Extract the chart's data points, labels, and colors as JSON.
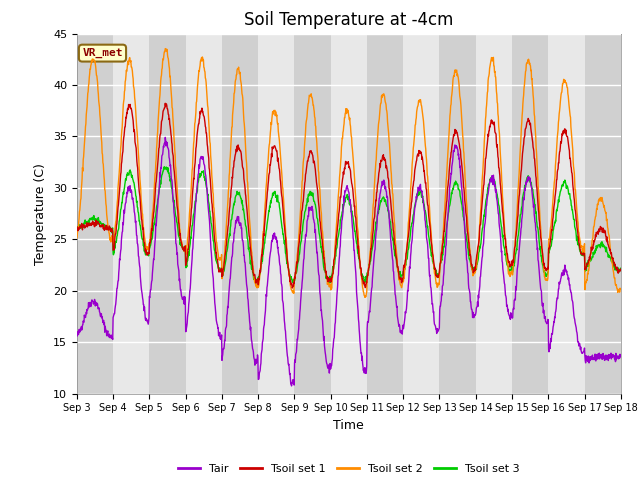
{
  "title": "Soil Temperature at -4cm",
  "xlabel": "Time",
  "ylabel": "Temperature (C)",
  "ylim": [
    10,
    45
  ],
  "yticks": [
    10,
    15,
    20,
    25,
    30,
    35,
    40,
    45
  ],
  "annotation": "VR_met",
  "legend_labels": [
    "Tair",
    "Tsoil set 1",
    "Tsoil set 2",
    "Tsoil set 3"
  ],
  "line_colors": [
    "#9900CC",
    "#CC0000",
    "#FF8C00",
    "#00CC00"
  ],
  "background_color": "#FFFFFF",
  "plot_bg_color": "#E8E8E8",
  "band_color_dark": "#D0D0D0",
  "band_color_light": "#E8E8E8",
  "n_days": 15,
  "start_day": 3,
  "points_per_day": 96,
  "title_fontsize": 12,
  "axis_fontsize": 9,
  "tick_fontsize": 8
}
